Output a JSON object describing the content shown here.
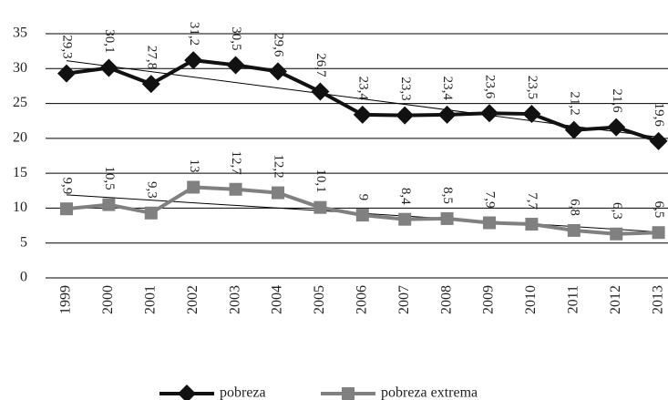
{
  "chart_data": {
    "type": "line",
    "categories": [
      "1999",
      "2000",
      "2001",
      "2002",
      "2003",
      "2004",
      "2005",
      "2006",
      "2007",
      "2008",
      "2009",
      "2010",
      "2011",
      "2012",
      "2013"
    ],
    "series": [
      {
        "name": "pobreza",
        "color": "#111111",
        "marker": "diamond",
        "values": [
          29.3,
          30.1,
          27.8,
          31.2,
          30.5,
          29.6,
          26.7,
          23.4,
          23.3,
          23.4,
          23.6,
          23.5,
          21.2,
          21.6,
          19.6
        ],
        "value_labels": [
          "29,3",
          "30,1",
          "27,8",
          "31,2",
          "30,5",
          "29,6",
          "26,7",
          "23,4",
          "23,3",
          "23,4",
          "23,6",
          "23,5",
          "21,2",
          "21,6",
          "19,6"
        ]
      },
      {
        "name": "pobreza extrema",
        "color": "#808080",
        "marker": "square",
        "values": [
          9.9,
          10.5,
          9.3,
          13,
          12.7,
          12.2,
          10.1,
          9,
          8.4,
          8.5,
          7.9,
          7.7,
          6.8,
          6.3,
          6.5
        ],
        "value_labels": [
          "9,9",
          "10,5",
          "9,3",
          "13",
          "12,7",
          "12,2",
          "10,1",
          "9",
          "8,4",
          "8,5",
          "7,9",
          "7,7",
          "6,8",
          "6,3",
          "6,5"
        ]
      }
    ],
    "ylim": [
      0,
      35
    ],
    "yticks": [
      0,
      5,
      10,
      15,
      20,
      25,
      30,
      35
    ],
    "grid": true,
    "trendline": true,
    "legend": "bottom"
  }
}
